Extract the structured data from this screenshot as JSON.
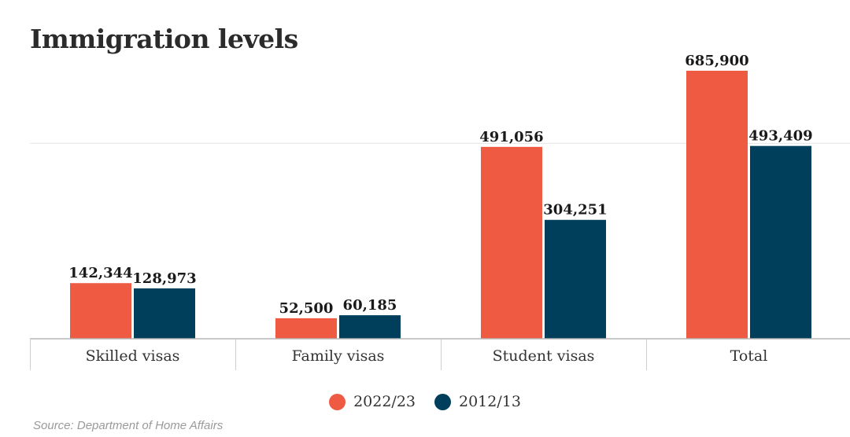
{
  "chart_data": {
    "type": "bar",
    "title": "Immigration levels",
    "categories": [
      "Skilled visas",
      "Family visas",
      "Student visas",
      "Total"
    ],
    "series": [
      {
        "name": "2022/23",
        "color": "#ef5a43",
        "values": [
          142344,
          52500,
          491056,
          685900
        ]
      },
      {
        "name": "2012/13",
        "color": "#003f5c",
        "values": [
          128973,
          60185,
          304251,
          493409
        ]
      }
    ],
    "value_labels": {
      "2022/23": [
        "142,344",
        "52,500",
        "491,056",
        "685,900"
      ],
      "2012/13": [
        "128,973",
        "60,185",
        "304,251",
        "493,409"
      ]
    },
    "ylim": [
      0,
      685900
    ],
    "gridlines": [
      0,
      500000
    ],
    "legend_position": "bottom-center",
    "source": "Source: Department of Home Affairs"
  }
}
